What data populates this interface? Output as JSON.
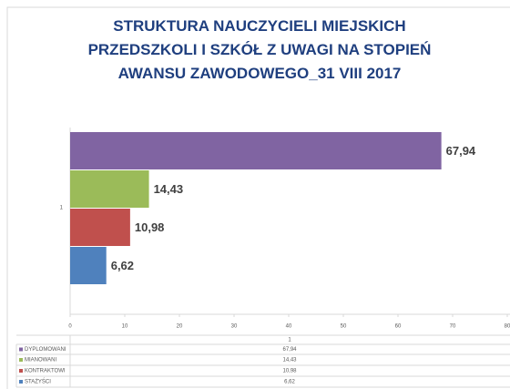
{
  "chart_data": {
    "type": "bar",
    "orientation": "horizontal",
    "title": "STRUKTURA NAUCZYCIELI MIEJSKICH\nPRZEDSZKOLI I SZKÓŁ Z UWAGI NA STOPIEŃ\nAWANSU ZAWODOWEGO_31 VIII 2017",
    "categories": [
      "1"
    ],
    "series": [
      {
        "name": "DYPLOMOWANI",
        "color": "#8064a2",
        "values": [
          67.94
        ],
        "value_labels": [
          "67,94"
        ]
      },
      {
        "name": "MIANOWANI",
        "color": "#9bbb59",
        "values": [
          14.43
        ],
        "value_labels": [
          "14,43"
        ]
      },
      {
        "name": "KONTRAKTOWI",
        "color": "#c0504d",
        "values": [
          10.98
        ],
        "value_labels": [
          "10,98"
        ]
      },
      {
        "name": "STAŻYŚCI",
        "color": "#4f81bd",
        "values": [
          6.62
        ],
        "value_labels": [
          "6,62"
        ]
      }
    ],
    "xlim": [
      0,
      80
    ],
    "xticks": [
      0,
      10,
      20,
      30,
      40,
      50,
      60,
      70,
      80
    ],
    "grid": false,
    "legend": "data-table"
  }
}
